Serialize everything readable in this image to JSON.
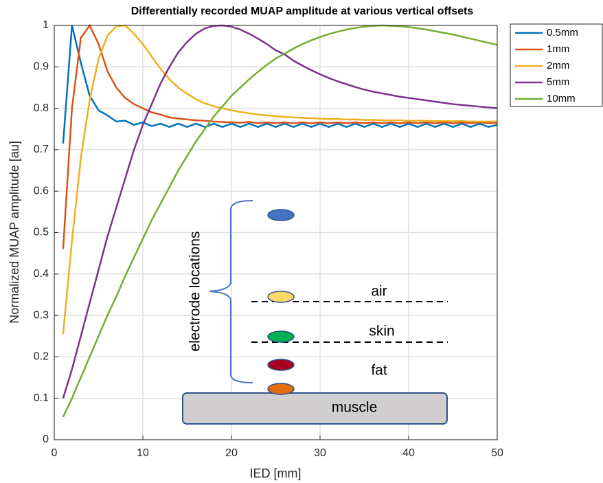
{
  "chart_data": {
    "type": "line",
    "title": "Differentially recorded MUAP amplitude at various vertical offsets",
    "xlabel": "IED [mm]",
    "ylabel": "Normalized MUAP amplitude [au]",
    "x": [
      1,
      2,
      3,
      4,
      5,
      6,
      7,
      8,
      9,
      10,
      11,
      12,
      13,
      14,
      15,
      16,
      17,
      18,
      19,
      20,
      21,
      22,
      23,
      24,
      25,
      26,
      27,
      28,
      29,
      30,
      31,
      32,
      33,
      34,
      35,
      36,
      37,
      38,
      39,
      40,
      41,
      42,
      43,
      44,
      45,
      46,
      47,
      48,
      49,
      50
    ],
    "series": [
      {
        "name": "0.5mm",
        "color": "#0072bd",
        "values": [
          0.715,
          1.0,
          0.91,
          0.83,
          0.795,
          0.783,
          0.768,
          0.77,
          0.76,
          0.766,
          0.757,
          0.763,
          0.755,
          0.763,
          0.755,
          0.763,
          0.755,
          0.763,
          0.755,
          0.763,
          0.755,
          0.763,
          0.755,
          0.763,
          0.755,
          0.763,
          0.755,
          0.763,
          0.755,
          0.763,
          0.755,
          0.763,
          0.755,
          0.763,
          0.755,
          0.763,
          0.755,
          0.763,
          0.755,
          0.763,
          0.755,
          0.763,
          0.755,
          0.763,
          0.755,
          0.763,
          0.755,
          0.763,
          0.755,
          0.76
        ]
      },
      {
        "name": "1mm",
        "color": "#d95319",
        "values": [
          0.46,
          0.8,
          0.97,
          1.0,
          0.955,
          0.89,
          0.85,
          0.825,
          0.81,
          0.8,
          0.79,
          0.785,
          0.778,
          0.775,
          0.773,
          0.771,
          0.77,
          0.768,
          0.767,
          0.766,
          0.765,
          0.767,
          0.764,
          0.766,
          0.764,
          0.766,
          0.764,
          0.766,
          0.764,
          0.766,
          0.764,
          0.766,
          0.764,
          0.766,
          0.764,
          0.766,
          0.764,
          0.766,
          0.764,
          0.766,
          0.764,
          0.766,
          0.764,
          0.766,
          0.764,
          0.766,
          0.764,
          0.766,
          0.764,
          0.765
        ]
      },
      {
        "name": "2mm",
        "color": "#edb120",
        "values": [
          0.255,
          0.48,
          0.68,
          0.82,
          0.92,
          0.975,
          0.998,
          1.0,
          0.98,
          0.955,
          0.925,
          0.895,
          0.87,
          0.85,
          0.835,
          0.822,
          0.812,
          0.805,
          0.8,
          0.795,
          0.791,
          0.788,
          0.785,
          0.783,
          0.781,
          0.779,
          0.778,
          0.777,
          0.776,
          0.775,
          0.774,
          0.774,
          0.773,
          0.773,
          0.772,
          0.772,
          0.771,
          0.771,
          0.771,
          0.77,
          0.77,
          0.77,
          0.769,
          0.769,
          0.769,
          0.769,
          0.768,
          0.768,
          0.768,
          0.768
        ]
      },
      {
        "name": "5mm",
        "color": "#7e2f8e",
        "values": [
          0.1,
          0.17,
          0.25,
          0.33,
          0.41,
          0.49,
          0.56,
          0.63,
          0.7,
          0.76,
          0.81,
          0.86,
          0.9,
          0.935,
          0.96,
          0.98,
          0.993,
          0.999,
          1.0,
          0.997,
          0.99,
          0.98,
          0.968,
          0.955,
          0.94,
          0.93,
          0.915,
          0.903,
          0.892,
          0.882,
          0.873,
          0.865,
          0.858,
          0.851,
          0.845,
          0.84,
          0.836,
          0.832,
          0.828,
          0.825,
          0.822,
          0.819,
          0.816,
          0.813,
          0.81,
          0.808,
          0.806,
          0.804,
          0.802,
          0.8
        ]
      },
      {
        "name": "10mm",
        "color": "#77ac30",
        "values": [
          0.055,
          0.1,
          0.15,
          0.2,
          0.25,
          0.3,
          0.345,
          0.395,
          0.44,
          0.485,
          0.53,
          0.57,
          0.61,
          0.65,
          0.685,
          0.72,
          0.75,
          0.78,
          0.805,
          0.83,
          0.85,
          0.87,
          0.888,
          0.905,
          0.92,
          0.932,
          0.944,
          0.955,
          0.964,
          0.972,
          0.979,
          0.985,
          0.99,
          0.994,
          0.997,
          0.999,
          1.0,
          0.999,
          0.998,
          0.996,
          0.993,
          0.99,
          0.986,
          0.982,
          0.978,
          0.973,
          0.968,
          0.963,
          0.958,
          0.953
        ]
      }
    ],
    "xlim": [
      0,
      50
    ],
    "xticks": [
      0,
      10,
      20,
      30,
      40,
      50
    ],
    "ylim": [
      0,
      1
    ],
    "yticks": [
      0,
      0.1,
      0.2,
      0.3,
      0.4,
      0.5,
      0.6,
      0.7,
      0.8,
      0.9,
      1
    ],
    "grid": true,
    "legend": "outside-upper-right",
    "annotations": {
      "electrode": "electrode locations",
      "air": "air",
      "skin": "skin",
      "fat": "fat",
      "muscle": "muscle"
    }
  }
}
